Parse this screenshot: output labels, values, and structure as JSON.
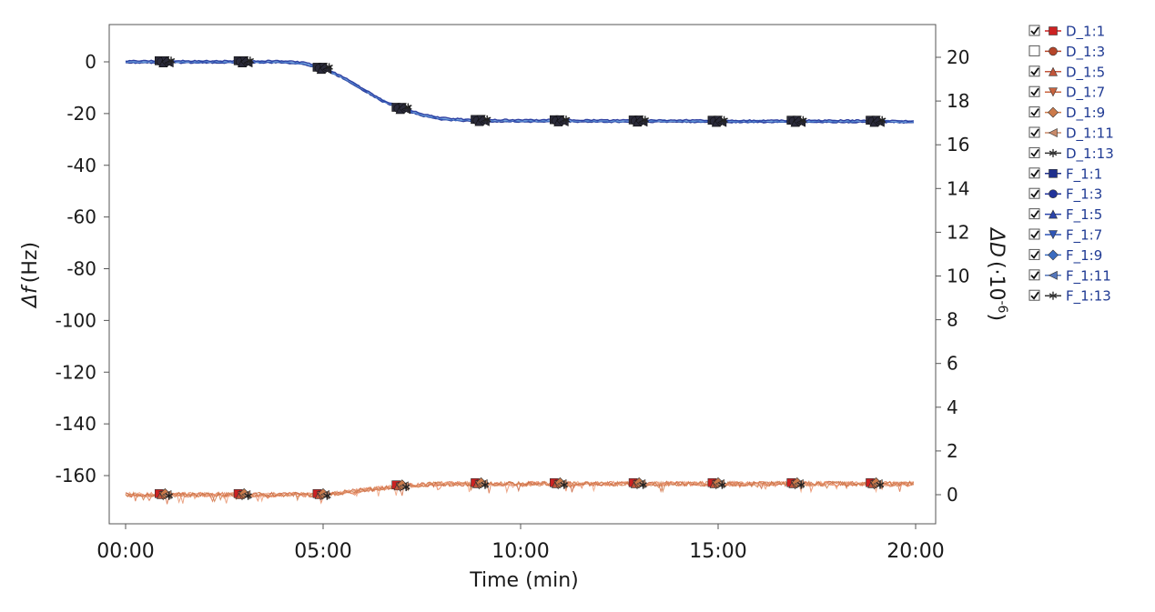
{
  "chart_data": {
    "type": "line",
    "xlabel": "Time (min)",
    "ylabel_left_symbol": "Δf",
    "ylabel_left_unit": "(Hz)",
    "ylabel_right_symbol": "ΔD",
    "ylabel_right_unit_prefix": "(·10",
    "ylabel_right_exponent": "-6",
    "ylabel_right_unit_suffix": ")",
    "x_ticks": [
      "00:00",
      "05:00",
      "10:00",
      "15:00",
      "20:00"
    ],
    "x_range_minutes": [
      0,
      20
    ],
    "y_left_ticks": [
      0,
      -20,
      -40,
      -60,
      -80,
      -100,
      -120,
      -140,
      -160
    ],
    "y_left_range": [
      -175,
      13
    ],
    "y_right_ticks": [
      0,
      2,
      4,
      6,
      8,
      10,
      12,
      14,
      16,
      18,
      20
    ],
    "y_right_range": [
      -1.3,
      21.5
    ],
    "grid": false,
    "legend_position": "right",
    "frequency_curve": {
      "x_minutes": [
        0,
        1,
        2,
        3,
        4,
        4.5,
        5,
        5.5,
        6,
        6.5,
        7,
        7.5,
        8,
        8.5,
        9,
        10,
        11,
        12,
        13,
        14,
        15,
        16,
        17,
        18,
        19,
        20
      ],
      "y_hz": [
        0,
        0,
        0,
        0,
        0,
        -0.5,
        -2.5,
        -6,
        -10.5,
        -15,
        -18,
        -20.5,
        -22,
        -22.5,
        -22.7,
        -22.8,
        -22.8,
        -22.9,
        -22.9,
        -22.9,
        -23,
        -23,
        -23,
        -23,
        -23,
        -23.2
      ]
    },
    "dissipation_curve": {
      "x_minutes": [
        0,
        1,
        2,
        3,
        4,
        5,
        6,
        7,
        8,
        9,
        10,
        11,
        12,
        13,
        14,
        15,
        16,
        17,
        18,
        19,
        20
      ],
      "y_e6": [
        0,
        0,
        0,
        0,
        0,
        0,
        0.2,
        0.4,
        0.5,
        0.5,
        0.5,
        0.5,
        0.5,
        0.5,
        0.5,
        0.5,
        0.5,
        0.5,
        0.5,
        0.5,
        0.5
      ]
    },
    "series": [
      {
        "name": "D_1:1",
        "checked": true,
        "marker": "square",
        "color": "#cc2222"
      },
      {
        "name": "D_1:3",
        "checked": false,
        "marker": "circle",
        "color": "#b5452a"
      },
      {
        "name": "D_1:5",
        "checked": true,
        "marker": "triangle-up",
        "color": "#c2553a"
      },
      {
        "name": "D_1:7",
        "checked": true,
        "marker": "triangle-down",
        "color": "#c8643f"
      },
      {
        "name": "D_1:9",
        "checked": true,
        "marker": "diamond",
        "color": "#cc7a4a"
      },
      {
        "name": "D_1:11",
        "checked": true,
        "marker": "triangle-left",
        "color": "#c88a6a"
      },
      {
        "name": "D_1:13",
        "checked": true,
        "marker": "asterisk",
        "color": "#333333"
      },
      {
        "name": "F_1:1",
        "checked": true,
        "marker": "square",
        "color": "#1f2f8c"
      },
      {
        "name": "F_1:3",
        "checked": true,
        "marker": "circle",
        "color": "#22339a"
      },
      {
        "name": "F_1:5",
        "checked": true,
        "marker": "triangle-up",
        "color": "#2a44aa"
      },
      {
        "name": "F_1:7",
        "checked": true,
        "marker": "triangle-down",
        "color": "#2f55b5"
      },
      {
        "name": "F_1:9",
        "checked": true,
        "marker": "diamond",
        "color": "#3b6cc0"
      },
      {
        "name": "F_1:11",
        "checked": true,
        "marker": "triangle-left",
        "color": "#5577bb"
      },
      {
        "name": "F_1:13",
        "checked": true,
        "marker": "asterisk",
        "color": "#333333"
      }
    ],
    "marker_times_minutes": [
      1,
      3,
      5,
      7,
      9,
      11,
      13,
      15,
      17,
      19
    ]
  }
}
